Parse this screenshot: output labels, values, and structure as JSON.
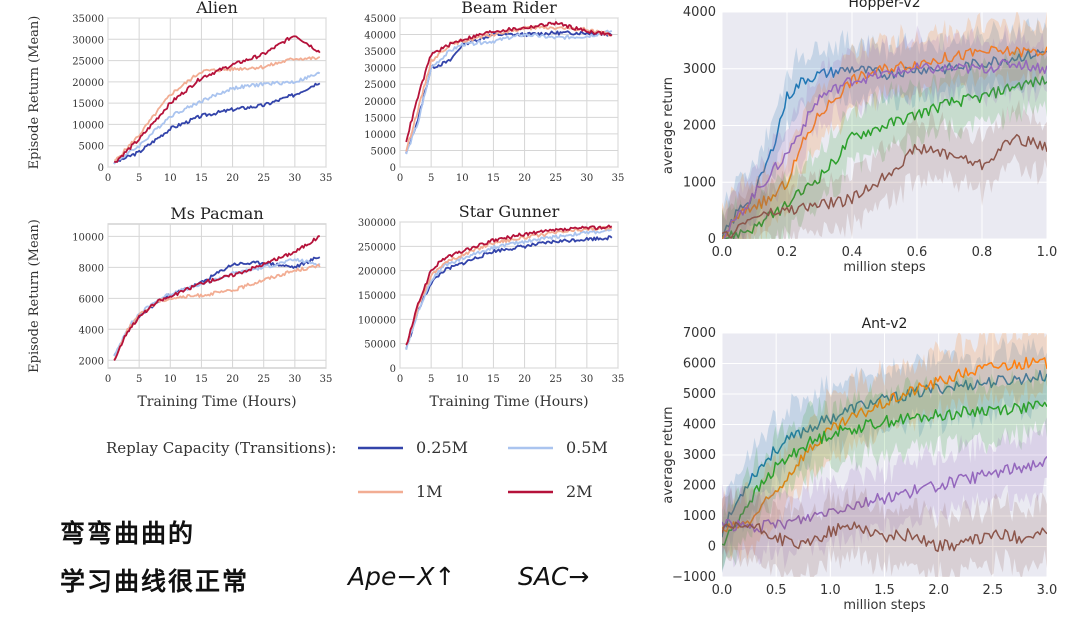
{
  "chart_data": [
    {
      "type": "line",
      "title": "Alien",
      "xlabel": "",
      "ylabel": "Episode Return (Mean)",
      "xlim": [
        0,
        35
      ],
      "ylim": [
        0,
        35000
      ],
      "xticks": [
        0,
        5,
        10,
        15,
        20,
        25,
        30,
        35
      ],
      "xtick_labels": [
        "0",
        "5",
        "10",
        "15",
        "20",
        "25",
        "30",
        "35"
      ],
      "yticks": [
        0,
        5000,
        10000,
        15000,
        20000,
        25000,
        30000,
        35000
      ],
      "ytick_labels": [
        "0",
        "5000",
        "10000",
        "15000",
        "20000",
        "25000",
        "30000",
        "35000"
      ],
      "series": [
        {
          "name": "0.25M",
          "color": "#3344aa",
          "x": [
            1,
            5,
            10,
            15,
            20,
            25,
            30,
            34
          ],
          "y": [
            1000,
            3500,
            9000,
            12000,
            13500,
            14500,
            17000,
            20000
          ]
        },
        {
          "name": "0.5M",
          "color": "#aac4ef",
          "x": [
            1,
            5,
            10,
            15,
            20,
            25,
            30,
            34
          ],
          "y": [
            1000,
            5000,
            12000,
            15500,
            18500,
            19500,
            20000,
            22000
          ]
        },
        {
          "name": "1M",
          "color": "#f2ad93",
          "x": [
            1,
            5,
            10,
            15,
            20,
            25,
            30,
            34
          ],
          "y": [
            1200,
            7500,
            17000,
            22500,
            23000,
            23500,
            25500,
            25500
          ]
        },
        {
          "name": "2M",
          "color": "#b5123a",
          "x": [
            1,
            5,
            10,
            15,
            20,
            25,
            30,
            34
          ],
          "y": [
            1000,
            6500,
            15000,
            21000,
            24000,
            26500,
            31000,
            27000
          ]
        }
      ]
    },
    {
      "type": "line",
      "title": "Beam Rider",
      "xlabel": "",
      "ylabel": "",
      "xlim": [
        0,
        35
      ],
      "ylim": [
        0,
        45000
      ],
      "xticks": [
        0,
        5,
        10,
        15,
        20,
        25,
        30,
        35
      ],
      "xtick_labels": [
        "0",
        "5",
        "10",
        "15",
        "20",
        "25",
        "30",
        "35"
      ],
      "yticks": [
        0,
        5000,
        10000,
        15000,
        20000,
        25000,
        30000,
        35000,
        40000,
        45000
      ],
      "ytick_labels": [
        "0",
        "5000",
        "10000",
        "15000",
        "20000",
        "25000",
        "30000",
        "35000",
        "40000",
        "45000"
      ],
      "series": [
        {
          "name": "0.25M",
          "color": "#3344aa",
          "x": [
            1,
            3,
            5,
            8,
            10,
            15,
            20,
            25,
            30,
            34
          ],
          "y": [
            4000,
            15000,
            30000,
            32000,
            37000,
            40000,
            40000,
            40500,
            40500,
            40000
          ]
        },
        {
          "name": "0.5M",
          "color": "#aac4ef",
          "x": [
            1,
            3,
            5,
            8,
            10,
            15,
            20,
            25,
            30,
            34
          ],
          "y": [
            4000,
            14000,
            30000,
            35000,
            37000,
            38000,
            40000,
            39000,
            39500,
            41000
          ]
        },
        {
          "name": "1M",
          "color": "#f2ad93",
          "x": [
            1,
            3,
            5,
            8,
            10,
            15,
            20,
            25,
            30,
            34
          ],
          "y": [
            5000,
            18000,
            32000,
            37000,
            38000,
            40000,
            42000,
            42000,
            41500,
            40000
          ]
        },
        {
          "name": "2M",
          "color": "#b5123a",
          "x": [
            1,
            3,
            5,
            8,
            10,
            15,
            20,
            25,
            30,
            34
          ],
          "y": [
            8000,
            22000,
            34000,
            37000,
            38500,
            41000,
            42000,
            43500,
            41000,
            40000
          ]
        }
      ]
    },
    {
      "type": "line",
      "title": "Ms Pacman",
      "xlabel": "Training Time (Hours)",
      "ylabel": "Episode Return (Mean)",
      "xlim": [
        0,
        35
      ],
      "ylim": [
        1500,
        10800
      ],
      "xticks": [
        0,
        5,
        10,
        15,
        20,
        25,
        30,
        35
      ],
      "xtick_labels": [
        "0",
        "5",
        "10",
        "15",
        "20",
        "25",
        "30",
        "35"
      ],
      "yticks": [
        2000,
        4000,
        6000,
        8000,
        10000
      ],
      "ytick_labels": [
        "2000",
        "4000",
        "6000",
        "8000",
        "10000"
      ],
      "series": [
        {
          "name": "0.25M",
          "color": "#3344aa",
          "x": [
            1,
            3,
            5,
            8,
            10,
            15,
            20,
            25,
            30,
            34
          ],
          "y": [
            2200,
            3800,
            4800,
            5800,
            6200,
            7000,
            8200,
            8300,
            8000,
            8700
          ]
        },
        {
          "name": "0.5M",
          "color": "#aac4ef",
          "x": [
            1,
            3,
            5,
            8,
            10,
            15,
            20,
            25,
            30,
            34
          ],
          "y": [
            2200,
            4000,
            5000,
            5900,
            6300,
            6900,
            7600,
            8000,
            8500,
            8200
          ]
        },
        {
          "name": "1M",
          "color": "#f2ad93",
          "x": [
            1,
            3,
            5,
            8,
            10,
            15,
            20,
            25,
            30,
            34
          ],
          "y": [
            2000,
            3900,
            4900,
            5800,
            6000,
            6200,
            6500,
            7200,
            7800,
            8100
          ]
        },
        {
          "name": "2M",
          "color": "#b5123a",
          "x": [
            1,
            3,
            5,
            8,
            10,
            15,
            20,
            25,
            30,
            34
          ],
          "y": [
            2000,
            3800,
            4800,
            5800,
            6100,
            7000,
            7500,
            8200,
            9000,
            10000
          ]
        }
      ]
    },
    {
      "type": "line",
      "title": "Star Gunner",
      "xlabel": "Training Time (Hours)",
      "ylabel": "",
      "xlim": [
        0,
        35
      ],
      "ylim": [
        0,
        300000
      ],
      "xticks": [
        0,
        5,
        10,
        15,
        20,
        25,
        30,
        35
      ],
      "xtick_labels": [
        "0",
        "5",
        "10",
        "15",
        "20",
        "25",
        "30",
        "35"
      ],
      "yticks": [
        0,
        50000,
        100000,
        150000,
        200000,
        250000,
        300000
      ],
      "ytick_labels": [
        "0",
        "50000",
        "100000",
        "150000",
        "200000",
        "250000",
        "300000"
      ],
      "series": [
        {
          "name": "0.25M",
          "color": "#3344aa",
          "x": [
            1,
            3,
            5,
            7,
            10,
            15,
            20,
            25,
            30,
            34
          ],
          "y": [
            40000,
            120000,
            175000,
            200000,
            215000,
            240000,
            250000,
            260000,
            265000,
            268000
          ]
        },
        {
          "name": "0.5M",
          "color": "#aac4ef",
          "x": [
            1,
            3,
            5,
            7,
            10,
            15,
            20,
            25,
            30,
            34
          ],
          "y": [
            40000,
            120000,
            180000,
            210000,
            225000,
            248000,
            260000,
            270000,
            278000,
            282000
          ]
        },
        {
          "name": "1M",
          "color": "#f2ad93",
          "x": [
            1,
            3,
            5,
            7,
            10,
            15,
            20,
            25,
            30,
            34
          ],
          "y": [
            45000,
            130000,
            190000,
            215000,
            232000,
            258000,
            268000,
            278000,
            285000,
            288000
          ]
        },
        {
          "name": "2M",
          "color": "#b5123a",
          "x": [
            1,
            3,
            5,
            7,
            10,
            15,
            20,
            25,
            30,
            34
          ],
          "y": [
            45000,
            135000,
            200000,
            225000,
            240000,
            262000,
            275000,
            283000,
            288000,
            290000
          ]
        }
      ]
    },
    {
      "type": "line",
      "title": "Hopper-v2",
      "xlabel": "million steps",
      "ylabel": "average return",
      "xlim": [
        0,
        1.0
      ],
      "ylim": [
        0,
        4000
      ],
      "xticks": [
        0,
        0.2,
        0.4,
        0.6,
        0.8,
        1.0
      ],
      "xtick_labels": [
        "0.0",
        "0.2",
        "0.4",
        "0.6",
        "0.8",
        "1.0"
      ],
      "yticks": [
        0,
        1000,
        2000,
        3000,
        4000
      ],
      "ytick_labels": [
        "0",
        "1000",
        "2000",
        "3000",
        "4000"
      ],
      "series": [
        {
          "name": "blue",
          "color": "#1f77b4",
          "x": [
            0,
            0.05,
            0.1,
            0.15,
            0.2,
            0.25,
            0.3,
            0.4,
            0.5,
            0.6,
            0.7,
            0.8,
            0.9,
            1.0
          ],
          "y": [
            0,
            500,
            800,
            1500,
            2500,
            2800,
            2900,
            3000,
            2900,
            3000,
            3000,
            3100,
            3200,
            3300
          ]
        },
        {
          "name": "orange",
          "color": "#ff7f0e",
          "x": [
            0,
            0.05,
            0.1,
            0.15,
            0.2,
            0.25,
            0.3,
            0.35,
            0.4,
            0.5,
            0.6,
            0.7,
            0.8,
            0.9,
            1.0
          ],
          "y": [
            0,
            400,
            600,
            700,
            1000,
            1700,
            2200,
            2500,
            2800,
            3000,
            3100,
            3200,
            3300,
            3300,
            3300
          ]
        },
        {
          "name": "green",
          "color": "#2ca02c",
          "x": [
            0,
            0.1,
            0.2,
            0.3,
            0.35,
            0.4,
            0.5,
            0.6,
            0.7,
            0.8,
            0.9,
            1.0
          ],
          "y": [
            0,
            200,
            600,
            1100,
            1400,
            1800,
            2000,
            2200,
            2400,
            2500,
            2700,
            2800
          ]
        },
        {
          "name": "purple",
          "color": "#9467bd",
          "x": [
            0,
            0.1,
            0.2,
            0.3,
            0.4,
            0.5,
            0.6,
            0.7,
            0.8,
            0.9,
            1.0
          ],
          "y": [
            0,
            800,
            1500,
            2500,
            2800,
            2900,
            3000,
            3000,
            3000,
            3100,
            3000
          ]
        },
        {
          "name": "brown",
          "color": "#8c564b",
          "x": [
            0,
            0.1,
            0.2,
            0.3,
            0.4,
            0.5,
            0.6,
            0.7,
            0.8,
            0.9,
            1.0
          ],
          "y": [
            0,
            400,
            500,
            600,
            700,
            1100,
            1600,
            1500,
            1300,
            1800,
            1600
          ]
        }
      ]
    },
    {
      "type": "line",
      "title": "Ant-v2",
      "xlabel": "million steps",
      "ylabel": "average return",
      "xlim": [
        0,
        3.0
      ],
      "ylim": [
        -1000,
        7000
      ],
      "xticks": [
        0,
        0.5,
        1.0,
        1.5,
        2.0,
        2.5,
        3.0
      ],
      "xtick_labels": [
        "0.0",
        "0.5",
        "1.0",
        "1.5",
        "2.0",
        "2.5",
        "3.0"
      ],
      "yticks": [
        -1000,
        0,
        1000,
        2000,
        3000,
        4000,
        5000,
        6000,
        7000
      ],
      "ytick_labels": [
        "−1000",
        "0",
        "1000",
        "2000",
        "3000",
        "4000",
        "5000",
        "6000",
        "7000"
      ],
      "series": [
        {
          "name": "blue",
          "color": "#1f77b4",
          "x": [
            0,
            0.25,
            0.5,
            0.75,
            1.0,
            1.25,
            1.5,
            1.75,
            2.0,
            2.25,
            2.5,
            2.75,
            3.0
          ],
          "y": [
            500,
            2200,
            3200,
            3800,
            4200,
            4600,
            4800,
            5000,
            5200,
            5300,
            5400,
            5500,
            5600
          ]
        },
        {
          "name": "orange",
          "color": "#ff7f0e",
          "x": [
            0,
            0.25,
            0.5,
            0.75,
            1.0,
            1.25,
            1.5,
            1.75,
            2.0,
            2.25,
            2.5,
            2.75,
            3.0
          ],
          "y": [
            500,
            800,
            1800,
            3000,
            3800,
            4300,
            4700,
            5100,
            5400,
            5700,
            5900,
            6000,
            6000
          ]
        },
        {
          "name": "green",
          "color": "#2ca02c",
          "x": [
            0,
            0.25,
            0.5,
            0.75,
            1.0,
            1.25,
            1.5,
            1.75,
            2.0,
            2.25,
            2.5,
            2.75,
            3.0
          ],
          "y": [
            0,
            1500,
            2600,
            3300,
            3700,
            3900,
            4100,
            4200,
            4300,
            4400,
            4500,
            4550,
            4600
          ]
        },
        {
          "name": "purple",
          "color": "#9467bd",
          "x": [
            0,
            0.25,
            0.5,
            0.75,
            1.0,
            1.25,
            1.5,
            1.75,
            2.0,
            2.25,
            2.5,
            2.75,
            3.0
          ],
          "y": [
            800,
            600,
            700,
            900,
            1200,
            1400,
            1600,
            1800,
            2000,
            2200,
            2400,
            2600,
            2800
          ]
        },
        {
          "name": "brown",
          "color": "#8c564b",
          "x": [
            0,
            0.25,
            0.5,
            0.75,
            1.0,
            1.25,
            1.5,
            1.75,
            2.0,
            2.25,
            2.5,
            2.75,
            3.0
          ],
          "y": [
            500,
            700,
            300,
            0,
            500,
            700,
            300,
            400,
            0,
            100,
            400,
            300,
            500
          ]
        }
      ]
    }
  ],
  "legend": {
    "title": "Replay Capacity (Transitions):",
    "items": [
      {
        "label": "0.25M",
        "color": "#3344aa"
      },
      {
        "label": "0.5M",
        "color": "#aac4ef"
      },
      {
        "label": "1M",
        "color": "#f2ad93"
      },
      {
        "label": "2M",
        "color": "#b5123a"
      }
    ]
  },
  "caption": {
    "line1": "弯弯曲曲的",
    "line2": "学习曲线很正常",
    "ape": "Ape−X↑",
    "sac": "SAC→"
  }
}
